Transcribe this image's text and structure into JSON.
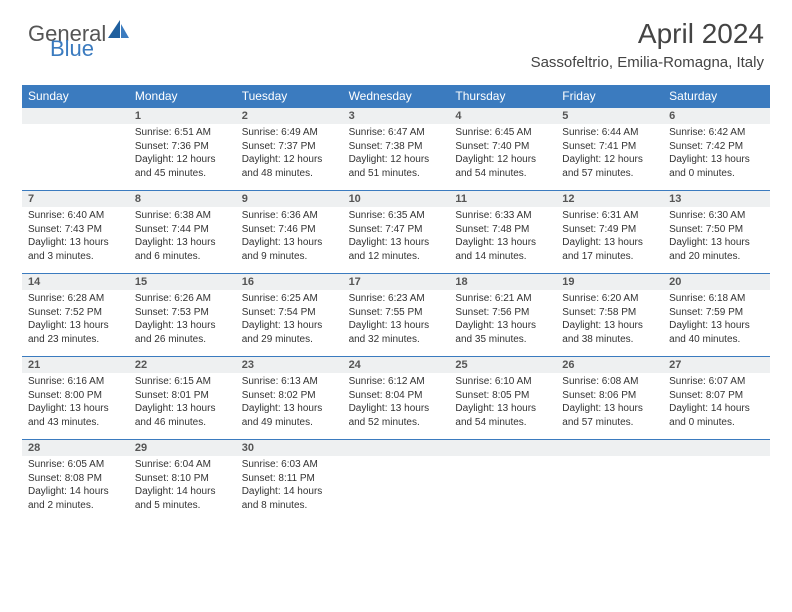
{
  "brand": {
    "general": "General",
    "blue": "Blue"
  },
  "title": "April 2024",
  "location": "Sassofeltrio, Emilia-Romagna, Italy",
  "colors": {
    "header_bg": "#3b7bbf",
    "header_text": "#ffffff",
    "daynum_bg": "#eef0f1",
    "border": "#3b7bbf",
    "text": "#333333"
  },
  "dayNames": [
    "Sunday",
    "Monday",
    "Tuesday",
    "Wednesday",
    "Thursday",
    "Friday",
    "Saturday"
  ],
  "weeks": [
    {
      "nums": [
        "",
        "1",
        "2",
        "3",
        "4",
        "5",
        "6"
      ],
      "cells": [
        [],
        [
          "Sunrise: 6:51 AM",
          "Sunset: 7:36 PM",
          "Daylight: 12 hours",
          "and 45 minutes."
        ],
        [
          "Sunrise: 6:49 AM",
          "Sunset: 7:37 PM",
          "Daylight: 12 hours",
          "and 48 minutes."
        ],
        [
          "Sunrise: 6:47 AM",
          "Sunset: 7:38 PM",
          "Daylight: 12 hours",
          "and 51 minutes."
        ],
        [
          "Sunrise: 6:45 AM",
          "Sunset: 7:40 PM",
          "Daylight: 12 hours",
          "and 54 minutes."
        ],
        [
          "Sunrise: 6:44 AM",
          "Sunset: 7:41 PM",
          "Daylight: 12 hours",
          "and 57 minutes."
        ],
        [
          "Sunrise: 6:42 AM",
          "Sunset: 7:42 PM",
          "Daylight: 13 hours",
          "and 0 minutes."
        ]
      ]
    },
    {
      "nums": [
        "7",
        "8",
        "9",
        "10",
        "11",
        "12",
        "13"
      ],
      "cells": [
        [
          "Sunrise: 6:40 AM",
          "Sunset: 7:43 PM",
          "Daylight: 13 hours",
          "and 3 minutes."
        ],
        [
          "Sunrise: 6:38 AM",
          "Sunset: 7:44 PM",
          "Daylight: 13 hours",
          "and 6 minutes."
        ],
        [
          "Sunrise: 6:36 AM",
          "Sunset: 7:46 PM",
          "Daylight: 13 hours",
          "and 9 minutes."
        ],
        [
          "Sunrise: 6:35 AM",
          "Sunset: 7:47 PM",
          "Daylight: 13 hours",
          "and 12 minutes."
        ],
        [
          "Sunrise: 6:33 AM",
          "Sunset: 7:48 PM",
          "Daylight: 13 hours",
          "and 14 minutes."
        ],
        [
          "Sunrise: 6:31 AM",
          "Sunset: 7:49 PM",
          "Daylight: 13 hours",
          "and 17 minutes."
        ],
        [
          "Sunrise: 6:30 AM",
          "Sunset: 7:50 PM",
          "Daylight: 13 hours",
          "and 20 minutes."
        ]
      ]
    },
    {
      "nums": [
        "14",
        "15",
        "16",
        "17",
        "18",
        "19",
        "20"
      ],
      "cells": [
        [
          "Sunrise: 6:28 AM",
          "Sunset: 7:52 PM",
          "Daylight: 13 hours",
          "and 23 minutes."
        ],
        [
          "Sunrise: 6:26 AM",
          "Sunset: 7:53 PM",
          "Daylight: 13 hours",
          "and 26 minutes."
        ],
        [
          "Sunrise: 6:25 AM",
          "Sunset: 7:54 PM",
          "Daylight: 13 hours",
          "and 29 minutes."
        ],
        [
          "Sunrise: 6:23 AM",
          "Sunset: 7:55 PM",
          "Daylight: 13 hours",
          "and 32 minutes."
        ],
        [
          "Sunrise: 6:21 AM",
          "Sunset: 7:56 PM",
          "Daylight: 13 hours",
          "and 35 minutes."
        ],
        [
          "Sunrise: 6:20 AM",
          "Sunset: 7:58 PM",
          "Daylight: 13 hours",
          "and 38 minutes."
        ],
        [
          "Sunrise: 6:18 AM",
          "Sunset: 7:59 PM",
          "Daylight: 13 hours",
          "and 40 minutes."
        ]
      ]
    },
    {
      "nums": [
        "21",
        "22",
        "23",
        "24",
        "25",
        "26",
        "27"
      ],
      "cells": [
        [
          "Sunrise: 6:16 AM",
          "Sunset: 8:00 PM",
          "Daylight: 13 hours",
          "and 43 minutes."
        ],
        [
          "Sunrise: 6:15 AM",
          "Sunset: 8:01 PM",
          "Daylight: 13 hours",
          "and 46 minutes."
        ],
        [
          "Sunrise: 6:13 AM",
          "Sunset: 8:02 PM",
          "Daylight: 13 hours",
          "and 49 minutes."
        ],
        [
          "Sunrise: 6:12 AM",
          "Sunset: 8:04 PM",
          "Daylight: 13 hours",
          "and 52 minutes."
        ],
        [
          "Sunrise: 6:10 AM",
          "Sunset: 8:05 PM",
          "Daylight: 13 hours",
          "and 54 minutes."
        ],
        [
          "Sunrise: 6:08 AM",
          "Sunset: 8:06 PM",
          "Daylight: 13 hours",
          "and 57 minutes."
        ],
        [
          "Sunrise: 6:07 AM",
          "Sunset: 8:07 PM",
          "Daylight: 14 hours",
          "and 0 minutes."
        ]
      ]
    },
    {
      "nums": [
        "28",
        "29",
        "30",
        "",
        "",
        "",
        ""
      ],
      "cells": [
        [
          "Sunrise: 6:05 AM",
          "Sunset: 8:08 PM",
          "Daylight: 14 hours",
          "and 2 minutes."
        ],
        [
          "Sunrise: 6:04 AM",
          "Sunset: 8:10 PM",
          "Daylight: 14 hours",
          "and 5 minutes."
        ],
        [
          "Sunrise: 6:03 AM",
          "Sunset: 8:11 PM",
          "Daylight: 14 hours",
          "and 8 minutes."
        ],
        [],
        [],
        [],
        []
      ]
    }
  ]
}
